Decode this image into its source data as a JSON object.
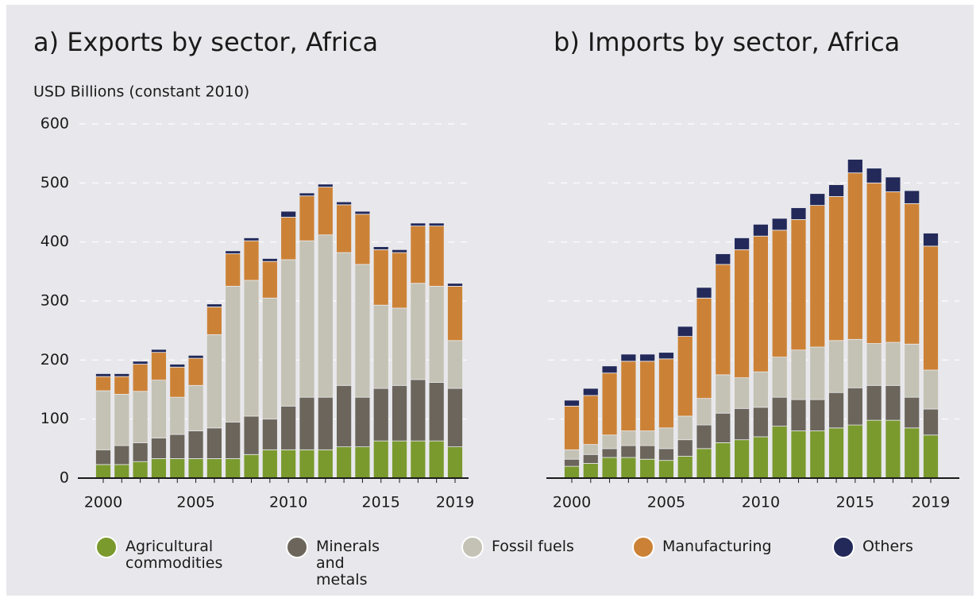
{
  "chart_data": [
    {
      "type": "stacked_bar",
      "title": "a) Exports by sector, Africa",
      "ylabel": "USD Billions (constant 2010)",
      "categories": [
        "2000",
        null,
        null,
        null,
        null,
        "2005",
        null,
        null,
        null,
        null,
        "2010",
        null,
        null,
        null,
        null,
        "2015",
        null,
        null,
        null,
        "2019"
      ],
      "series": [
        {
          "name": "Agricultural commodities",
          "color": "#7a9a2e",
          "values": [
            23,
            23,
            28,
            33,
            33,
            33,
            33,
            33,
            40,
            48,
            48,
            48,
            48,
            53,
            53,
            63,
            63,
            63,
            63,
            53
          ]
        },
        {
          "name": "Minerals and metals",
          "color": "#6b655c",
          "values": [
            25,
            32,
            32,
            35,
            41,
            47,
            52,
            62,
            65,
            52,
            74,
            89,
            89,
            104,
            84,
            89,
            94,
            104,
            99,
            99
          ]
        },
        {
          "name": "Fossil fuels",
          "color": "#c4c2b4",
          "values": [
            100,
            87,
            87,
            98,
            63,
            77,
            158,
            230,
            230,
            205,
            248,
            265,
            275,
            225,
            225,
            141,
            131,
            163,
            163,
            81
          ]
        },
        {
          "name": "Manufacturing",
          "color": "#cc8236",
          "values": [
            24,
            30,
            46,
            47,
            51,
            46,
            47,
            55,
            67,
            62,
            72,
            76,
            81,
            81,
            85,
            94,
            94,
            97,
            102,
            92
          ]
        },
        {
          "name": "Others",
          "color": "#232a5a",
          "values": [
            5,
            5,
            5,
            5,
            5,
            5,
            5,
            5,
            5,
            5,
            10,
            5,
            5,
            5,
            5,
            5,
            5,
            5,
            5,
            5
          ]
        }
      ],
      "ylim": [
        0,
        600
      ],
      "yticks": [
        0,
        100,
        200,
        300,
        400,
        500,
        600
      ],
      "ytick_labels": true,
      "grid": true
    },
    {
      "type": "stacked_bar",
      "title": "b) Imports by sector, Africa",
      "categories": [
        "2000",
        null,
        null,
        null,
        null,
        "2005",
        null,
        null,
        null,
        null,
        "2010",
        null,
        null,
        null,
        null,
        "2015",
        null,
        null,
        null,
        "2019"
      ],
      "series": [
        {
          "name": "Agricultural commodities",
          "color": "#7a9a2e",
          "values": [
            20,
            25,
            35,
            35,
            32,
            30,
            37,
            50,
            60,
            65,
            70,
            88,
            80,
            80,
            85,
            90,
            98,
            98,
            85,
            73
          ]
        },
        {
          "name": "Minerals and metals",
          "color": "#6b655c",
          "values": [
            12,
            15,
            15,
            20,
            23,
            20,
            28,
            40,
            50,
            53,
            50,
            49,
            53,
            53,
            60,
            63,
            59,
            59,
            52,
            44
          ]
        },
        {
          "name": "Fossil fuels",
          "color": "#c4c2b4",
          "values": [
            16,
            17,
            23,
            25,
            25,
            35,
            40,
            45,
            65,
            52,
            60,
            68,
            84,
            89,
            88,
            82,
            71,
            73,
            90,
            66
          ]
        },
        {
          "name": "Manufacturing",
          "color": "#cc8236",
          "values": [
            74,
            83,
            105,
            118,
            118,
            117,
            135,
            170,
            187,
            217,
            230,
            215,
            221,
            240,
            244,
            282,
            272,
            255,
            238,
            210
          ]
        },
        {
          "name": "Others",
          "color": "#232a5a",
          "values": [
            10,
            12,
            12,
            12,
            12,
            11,
            17,
            18,
            18,
            20,
            20,
            20,
            20,
            20,
            20,
            23,
            25,
            25,
            22,
            22
          ]
        }
      ],
      "ylim": [
        0,
        600
      ],
      "yticks": [
        0,
        100,
        200,
        300,
        400,
        500,
        600
      ],
      "ytick_labels": false,
      "grid": true
    }
  ]
}
